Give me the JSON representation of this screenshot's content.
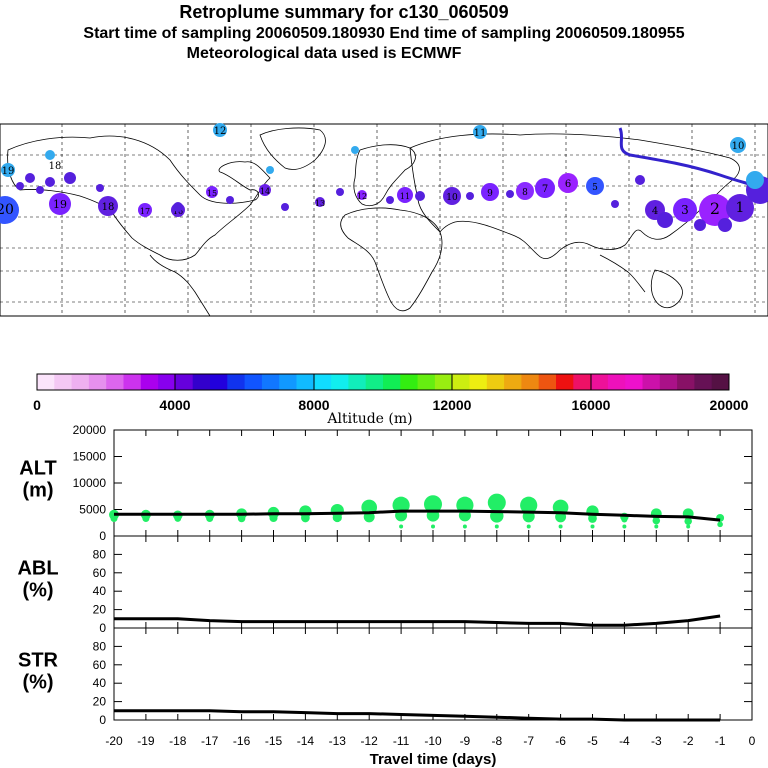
{
  "header": {
    "title": "Retroplume summary for c130_060509",
    "sampling": "Start time of sampling 20060509.180930     End time of sampling 20060509.180955",
    "met": "Meteorological data used is ECMWF"
  },
  "map": {
    "plume_points": [
      {
        "day": 20,
        "label": "20",
        "color": "#3355ff"
      },
      {
        "day": 19,
        "label": "19",
        "color": "#7a22ff"
      },
      {
        "day": 18,
        "label": "18",
        "color": "#6020e0"
      },
      {
        "day": 17,
        "label": "17",
        "color": "#7a22ff"
      },
      {
        "day": 16,
        "label": "16",
        "color": "#6020e0"
      },
      {
        "day": 15,
        "label": "15",
        "color": "#7a22ff"
      },
      {
        "day": 14,
        "label": "14",
        "color": "#6a1fe8"
      },
      {
        "day": 13,
        "label": "13",
        "color": "#6020e0"
      },
      {
        "day": 12,
        "label": "12",
        "color": "#8822ff"
      },
      {
        "day": 11,
        "label": "11",
        "color": "#7a22ff"
      },
      {
        "day": 10,
        "label": "10",
        "color": "#6020e0"
      },
      {
        "day": 9,
        "label": "9",
        "color": "#7a22ff"
      },
      {
        "day": 8,
        "label": "8",
        "color": "#8a2bff"
      },
      {
        "day": 7,
        "label": "7",
        "color": "#7a22ff"
      },
      {
        "day": 6,
        "label": "6",
        "color": "#9a22ff"
      },
      {
        "day": 5,
        "label": "5",
        "color": "#3355ff"
      },
      {
        "day": 4,
        "label": "4",
        "color": "#6020e0"
      },
      {
        "day": 3,
        "label": "3",
        "color": "#7a22ff"
      },
      {
        "day": 2,
        "label": "2",
        "color": "#9a22ff"
      },
      {
        "day": 1,
        "label": "1",
        "color": "#6020e0"
      }
    ],
    "other_labels": [
      {
        "text": "12",
        "color": "#22aaee"
      },
      {
        "text": "11",
        "color": "#22aaee"
      },
      {
        "text": "10",
        "color": "#22aaee"
      },
      {
        "text": "18",
        "color": "#22aaee"
      },
      {
        "text": "19",
        "color": "#22aaee"
      }
    ]
  },
  "colorbar": {
    "label": "Altitude (m)",
    "ticks": [
      "0",
      "4000",
      "8000",
      "12000",
      "16000",
      "20000"
    ],
    "colors": [
      "#fbe4fb",
      "#f4c8f4",
      "#eeb0f0",
      "#e690ee",
      "#dd66ee",
      "#cc33ee",
      "#aa00ee",
      "#8800ee",
      "#6600dd",
      "#3300cc",
      "#2200dd",
      "#1133ee",
      "#1155ff",
      "#1177ff",
      "#1199ff",
      "#11bbff",
      "#11ddff",
      "#11eeee",
      "#11eebb",
      "#11ee88",
      "#11ee55",
      "#33ee11",
      "#66ee11",
      "#99ee11",
      "#ccee11",
      "#eeee11",
      "#eecc11",
      "#eeaa11",
      "#ee8811",
      "#ee5511",
      "#ee1111",
      "#ee1166",
      "#ee1199",
      "#ee11bb",
      "#ee11cc",
      "#cc11aa",
      "#aa1188",
      "#881166",
      "#661155",
      "#551144"
    ]
  },
  "chart_data": [
    {
      "type": "line",
      "panel": "ALT",
      "ylabel_top": "ALT",
      "ylabel_bottom": "(m)",
      "ylim": [
        0,
        20000
      ],
      "yticks": [
        "20000",
        "15000",
        "10000",
        "5000",
        "0"
      ],
      "x": [
        -20,
        -19,
        -18,
        -17,
        -16,
        -15,
        -14,
        -13,
        -12,
        -11,
        -10,
        -9,
        -8,
        -7,
        -6,
        -5,
        -4,
        -3,
        -2,
        -1
      ],
      "series": [
        {
          "name": "median altitude",
          "values": [
            4100,
            4100,
            4100,
            4100,
            4100,
            4200,
            4200,
            4300,
            4400,
            4700,
            4700,
            4700,
            4600,
            4500,
            4400,
            4100,
            3900,
            3700,
            3600,
            3000
          ]
        },
        {
          "name": "plume spread (upper)",
          "values": [
            4000,
            4000,
            3900,
            4000,
            4200,
            4400,
            4600,
            4800,
            5400,
            5800,
            6000,
            5800,
            6300,
            5800,
            5400,
            4600,
            3600,
            4200,
            4200,
            3400
          ]
        }
      ]
    },
    {
      "type": "line",
      "panel": "ABL",
      "ylabel_top": "ABL",
      "ylabel_bottom": "(%)",
      "ylim": [
        0,
        100
      ],
      "yticks": [
        "80",
        "60",
        "40",
        "20",
        "0"
      ],
      "x": [
        -20,
        -19,
        -18,
        -17,
        -16,
        -15,
        -14,
        -13,
        -12,
        -11,
        -10,
        -9,
        -8,
        -7,
        -6,
        -5,
        -4,
        -3,
        -2,
        -1
      ],
      "series": [
        {
          "name": "ABL",
          "values": [
            10,
            10,
            10,
            8,
            7,
            7,
            7,
            7,
            7,
            7,
            7,
            7,
            6,
            5,
            5,
            3,
            3,
            5,
            8,
            13
          ]
        }
      ]
    },
    {
      "type": "line",
      "panel": "STR",
      "ylabel_top": "STR",
      "ylabel_bottom": "(%)",
      "ylim": [
        0,
        100
      ],
      "yticks": [
        "80",
        "60",
        "40",
        "20",
        "0"
      ],
      "x": [
        -20,
        -19,
        -18,
        -17,
        -16,
        -15,
        -14,
        -13,
        -12,
        -11,
        -10,
        -9,
        -8,
        -7,
        -6,
        -5,
        -4,
        -3,
        -2,
        -1
      ],
      "series": [
        {
          "name": "STR",
          "values": [
            10,
            10,
            10,
            10,
            9,
            9,
            8,
            7,
            7,
            6,
            5,
            4,
            3,
            2,
            1,
            1,
            0,
            0,
            0,
            0
          ]
        }
      ]
    }
  ],
  "xaxis": {
    "ticks": [
      "-20",
      "-19",
      "-18",
      "-17",
      "-16",
      "-15",
      "-14",
      "-13",
      "-12",
      "-11",
      "-10",
      "-9",
      "-8",
      "-7",
      "-6",
      "-5",
      "-4",
      "-3",
      "-2",
      "-1",
      "0"
    ],
    "label": "Travel time (days)"
  }
}
